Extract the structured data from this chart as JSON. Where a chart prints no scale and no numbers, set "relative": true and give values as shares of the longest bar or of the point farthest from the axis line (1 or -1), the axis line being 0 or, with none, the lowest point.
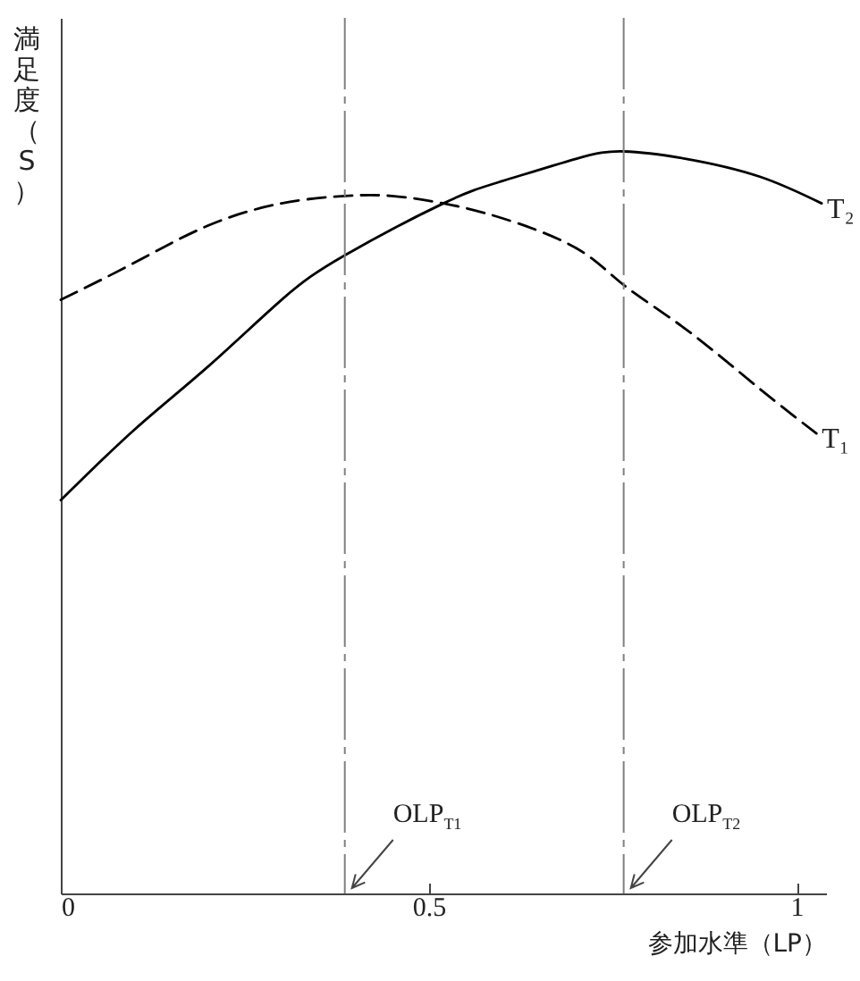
{
  "chart_data": {
    "type": "line",
    "relative": true,
    "xlabel": "参加水準（LP）",
    "ylabel": "満足度（S）",
    "xlim": [
      0,
      1.04
    ],
    "xticks": [
      0,
      0.5,
      1
    ],
    "series": [
      {
        "name": "T₂",
        "color": "#000000",
        "line_style": "solid",
        "x": [
          0,
          0.1,
          0.2,
          0.3,
          0.386,
          0.52,
          0.6,
          0.7,
          0.765,
          0.85,
          0.95,
          1.034
        ],
        "values": [
          0.53,
          0.625,
          0.71,
          0.8,
          0.86,
          0.93,
          0.96,
          0.99,
          1.0,
          0.99,
          0.966,
          0.93
        ]
      },
      {
        "name": "T₁",
        "color": "#000000",
        "line_style": "dashed",
        "x": [
          0,
          0.1,
          0.2,
          0.3,
          0.386,
          0.45,
          0.52,
          0.6,
          0.7,
          0.765,
          0.85,
          0.95,
          1.027
        ],
        "values": [
          0.8,
          0.85,
          0.9,
          0.93,
          0.94,
          0.94,
          0.93,
          0.91,
          0.87,
          0.82,
          0.76,
          0.68,
          0.62
        ]
      }
    ],
    "ref_lines": [
      {
        "axis": "x",
        "value": 0.386,
        "label": "OLP$_{T1}$",
        "color": "#808080",
        "line_style": "dashed"
      },
      {
        "axis": "x",
        "value": 0.765,
        "label": "OLP$_{T2}$",
        "color": "#808080",
        "line_style": "dashed"
      }
    ]
  }
}
